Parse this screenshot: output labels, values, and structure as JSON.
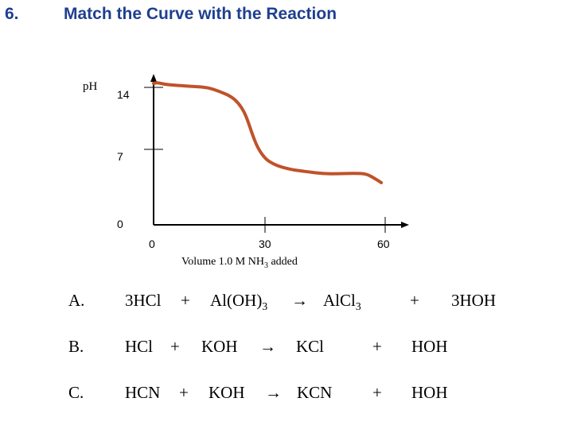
{
  "question": {
    "number": "6.",
    "title": "Match the Curve with the Reaction"
  },
  "chart_data": {
    "type": "line",
    "title": "",
    "ylabel": "pH",
    "xlabel_main": "Volume 1.0 M NH",
    "xlabel_sub": "3",
    "xlabel_tail": " added",
    "y_ticks": [
      "0",
      "7",
      "14"
    ],
    "x_ticks": [
      "0",
      "30",
      "60"
    ],
    "xlim": [
      0,
      66
    ],
    "ylim": [
      0,
      15.5
    ],
    "grid": false,
    "line_color": "#c0522a",
    "series": [
      {
        "x": [
          0,
          1,
          3,
          6,
          10,
          14,
          17,
          20,
          22,
          23.5,
          24.5,
          25.5,
          27,
          29,
          31,
          33,
          36,
          40,
          44,
          48,
          52,
          55,
          57,
          59
        ],
        "y": [
          14.4,
          14.5,
          14.3,
          14.2,
          14.1,
          14.0,
          13.6,
          13.1,
          12.4,
          11.5,
          10.5,
          9.3,
          7.8,
          6.7,
          6.2,
          5.9,
          5.6,
          5.4,
          5.2,
          5.2,
          5.25,
          5.2,
          4.8,
          4.3
        ]
      }
    ]
  },
  "choices": [
    {
      "letter": "A.",
      "reactant1": "3HCl",
      "plus1": "+",
      "reactant2_main": "Al(OH)",
      "reactant2_sub": "3",
      "arrow": "→",
      "product1_main": "AlCl",
      "product1_sub": "3",
      "plus2": "+",
      "product2": "3HOH"
    },
    {
      "letter": "B.",
      "reactant1": "HCl",
      "plus1": "+",
      "reactant2": "KOH",
      "arrow": "→",
      "product1": "KCl",
      "plus2": "+",
      "product2": "HOH"
    },
    {
      "letter": "C.",
      "reactant1": "HCN",
      "plus1": "+",
      "reactant2": "KOH",
      "arrow": "→",
      "product1": "KCN",
      "plus2": "+",
      "product2": "HOH"
    }
  ]
}
